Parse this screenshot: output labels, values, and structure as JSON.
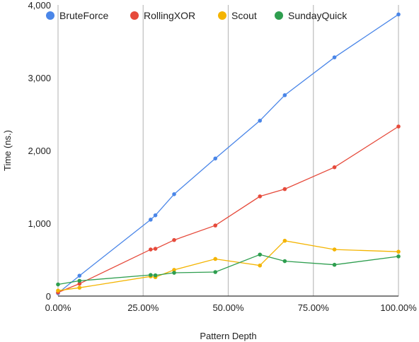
{
  "chart_data": {
    "type": "line",
    "title": "",
    "xlabel": "Pattern Depth",
    "ylabel": "Time (ns.)",
    "xlim": [
      0,
      100
    ],
    "ylim": [
      0,
      4000
    ],
    "x_ticks": [
      0,
      25,
      50,
      75,
      100
    ],
    "x_tick_labels": [
      "0.00%",
      "25.00%",
      "50.00%",
      "75.00%",
      "100.00%"
    ],
    "y_ticks": [
      0,
      1000,
      2000,
      3000,
      4000
    ],
    "y_tick_labels": [
      "0",
      "1,000",
      "2,000",
      "3,000",
      "4,000"
    ],
    "grid": "vertical",
    "legend": "top-left",
    "series": [
      {
        "name": "BruteForce",
        "color": "#4A86E8",
        "points": [
          [
            0,
            40
          ],
          [
            6.3,
            280
          ],
          [
            27.2,
            1050
          ],
          [
            28.6,
            1110
          ],
          [
            34.1,
            1400
          ],
          [
            46.2,
            1890
          ],
          [
            59.3,
            2410
          ],
          [
            66.6,
            2760
          ],
          [
            81.2,
            3280
          ],
          [
            100,
            3870
          ]
        ]
      },
      {
        "name": "RollingXOR",
        "color": "#E64A3B",
        "points": [
          [
            0,
            50
          ],
          [
            6.3,
            170
          ],
          [
            27.2,
            640
          ],
          [
            28.6,
            650
          ],
          [
            34.1,
            770
          ],
          [
            46.2,
            970
          ],
          [
            59.3,
            1370
          ],
          [
            66.6,
            1470
          ],
          [
            81.2,
            1770
          ],
          [
            100,
            2330
          ]
        ]
      },
      {
        "name": "Scout",
        "color": "#F4B400",
        "points": [
          [
            0,
            75
          ],
          [
            6.3,
            115
          ],
          [
            27.2,
            270
          ],
          [
            28.6,
            260
          ],
          [
            34.1,
            360
          ],
          [
            46.2,
            510
          ],
          [
            59.3,
            420
          ],
          [
            66.6,
            760
          ],
          [
            81.2,
            640
          ],
          [
            100,
            610
          ]
        ]
      },
      {
        "name": "SundayQuick",
        "color": "#2E9E4F",
        "points": [
          [
            0,
            160
          ],
          [
            6.3,
            210
          ],
          [
            27.2,
            290
          ],
          [
            28.6,
            285
          ],
          [
            34.1,
            320
          ],
          [
            46.2,
            330
          ],
          [
            59.3,
            570
          ],
          [
            66.6,
            480
          ],
          [
            81.2,
            430
          ],
          [
            100,
            545
          ]
        ]
      }
    ]
  }
}
